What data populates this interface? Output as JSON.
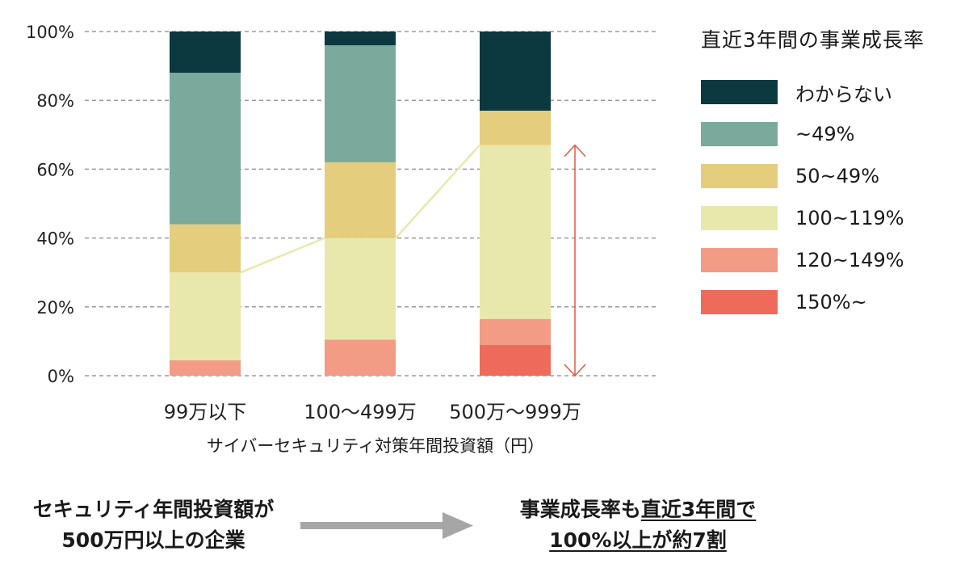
{
  "chart_data": {
    "type": "bar",
    "stacked": true,
    "categories": [
      "99万以下",
      "100〜499万",
      "500万〜999万"
    ],
    "xlabel": "サイバーセキュリティ対策年間投資額（円）",
    "ylim": [
      0,
      100
    ],
    "yticks": [
      "0%",
      "20%",
      "40%",
      "60%",
      "80%",
      "100%"
    ],
    "grid": true,
    "legend_title": "直近3年間の事業成長率",
    "legend_position": "right",
    "series": [
      {
        "name": "150%~",
        "color": "#ee6b5b",
        "values": [
          0,
          0,
          9
        ]
      },
      {
        "name": "120~149%",
        "color": "#f29b85",
        "values": [
          4.5,
          10.5,
          7.5
        ]
      },
      {
        "name": "100~119%",
        "color": "#e8e8ad",
        "values": [
          25.5,
          29.5,
          50.5
        ]
      },
      {
        "name": "50~49%",
        "color": "#e4cd7c",
        "values": [
          14,
          22,
          10
        ]
      },
      {
        "name": "~49%",
        "color": "#7baa9d",
        "values": [
          44,
          34,
          0
        ]
      },
      {
        "name": "わからない",
        "color": "#0c3840",
        "values": [
          12,
          4,
          23
        ]
      }
    ],
    "connector_line_values": [
      30,
      40,
      67
    ],
    "connector_color": "#e8e8ad",
    "annotation_arrow": {
      "category": "500万〜999万",
      "from": 0,
      "to": 67,
      "color": "#e05a44"
    }
  },
  "bottom_left": {
    "line1": "セキュリティ年間投資額が",
    "line2": "500万円以上の企業"
  },
  "bottom_right": {
    "line1_a": "事業成長率も",
    "line1_b": "直近3年間で",
    "line2": "100%以上が約7割"
  },
  "arrow_color": "#a6a6a6"
}
